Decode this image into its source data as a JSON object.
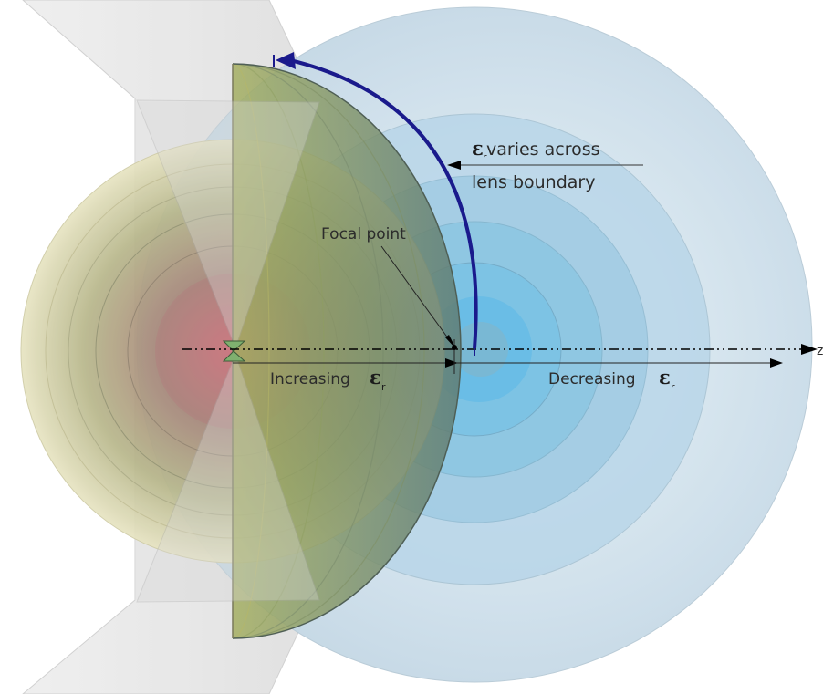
{
  "labels": {
    "varies_line1_symbol": "ε",
    "varies_line1_sub": "r",
    "varies_line1_text": " varies across",
    "varies_line2": "lens boundary",
    "focal_point": "Focal point",
    "increasing_text": "Increasing ",
    "increasing_symbol": "ε",
    "increasing_sub": "r",
    "decreasing_text": "Decreasing ",
    "decreasing_symbol": "ε",
    "decreasing_sub": "r",
    "axis": "z"
  },
  "colors": {
    "arc_arrow": "#1a1a8c",
    "axis_line": "#000000",
    "leader_line": "#222222"
  }
}
